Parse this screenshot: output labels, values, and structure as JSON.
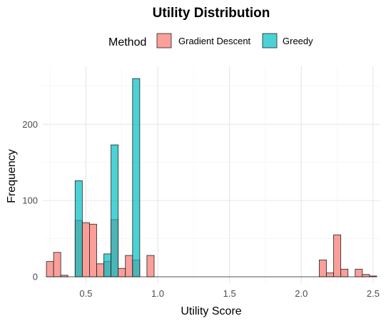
{
  "chart_data": {
    "type": "bar",
    "title": "Utility Distribution",
    "xlabel": "Utility Score",
    "ylabel": "Frequency",
    "xlim": [
      0.2,
      2.55
    ],
    "ylim": [
      0,
      262
    ],
    "x_ticks": [
      0.5,
      1.0,
      1.5,
      2.0,
      2.5
    ],
    "x_tick_labels": [
      "0.5",
      "1.0",
      "1.5",
      "2.0",
      "2.5"
    ],
    "y_ticks": [
      0,
      100,
      200
    ],
    "y_tick_labels": [
      "0",
      "100",
      "200"
    ],
    "grid": true,
    "legend": {
      "title": "Method",
      "placement": "top",
      "entries": [
        {
          "name": "Gradient Descent",
          "color": "#F8766D"
        },
        {
          "name": "Greedy",
          "color": "#00BFC4"
        }
      ]
    },
    "series": [
      {
        "name": "Gradient Descent",
        "color": "#F8766D",
        "bars": [
          {
            "x0": 0.225,
            "x1": 0.275,
            "value": 20
          },
          {
            "x0": 0.275,
            "x1": 0.325,
            "value": 32
          },
          {
            "x0": 0.325,
            "x1": 0.375,
            "value": 2
          },
          {
            "x0": 0.425,
            "x1": 0.475,
            "value": 74
          },
          {
            "x0": 0.475,
            "x1": 0.525,
            "value": 71
          },
          {
            "x0": 0.525,
            "x1": 0.575,
            "value": 69
          },
          {
            "x0": 0.575,
            "x1": 0.625,
            "value": 17
          },
          {
            "x0": 0.625,
            "x1": 0.675,
            "value": 20
          },
          {
            "x0": 0.675,
            "x1": 0.725,
            "value": 75
          },
          {
            "x0": 0.725,
            "x1": 0.775,
            "value": 11
          },
          {
            "x0": 0.775,
            "x1": 0.825,
            "value": 28
          },
          {
            "x0": 0.825,
            "x1": 0.875,
            "value": 22
          },
          {
            "x0": 0.925,
            "x1": 0.975,
            "value": 28
          },
          {
            "x0": 2.125,
            "x1": 2.175,
            "value": 22
          },
          {
            "x0": 2.175,
            "x1": 2.225,
            "value": 5
          },
          {
            "x0": 2.225,
            "x1": 2.275,
            "value": 55
          },
          {
            "x0": 2.275,
            "x1": 2.325,
            "value": 10
          },
          {
            "x0": 2.375,
            "x1": 2.425,
            "value": 10
          },
          {
            "x0": 2.425,
            "x1": 2.475,
            "value": 3
          },
          {
            "x0": 2.475,
            "x1": 2.525,
            "value": 1
          }
        ]
      },
      {
        "name": "Greedy",
        "color": "#00BFC4",
        "bars": [
          {
            "x0": 0.425,
            "x1": 0.475,
            "value": 126
          },
          {
            "x0": 0.625,
            "x1": 0.675,
            "value": 30
          },
          {
            "x0": 0.675,
            "x1": 0.725,
            "value": 173
          },
          {
            "x0": 0.825,
            "x1": 0.875,
            "value": 260
          }
        ]
      }
    ]
  }
}
